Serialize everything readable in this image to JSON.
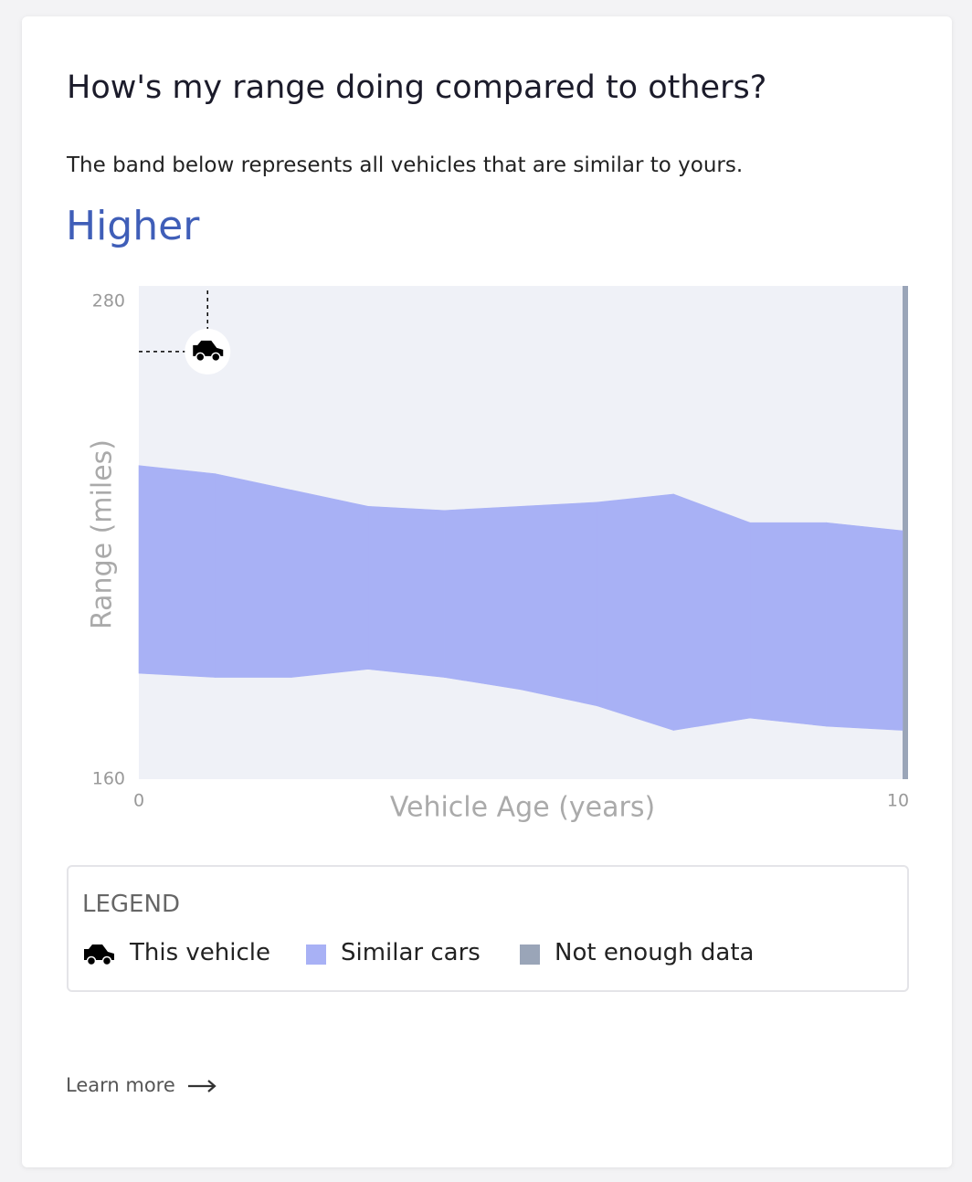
{
  "header": {
    "title": "How's my range doing compared to others?",
    "subtitle": "The band below represents all vehicles that are similar to yours.",
    "status": "Higher"
  },
  "chart_data": {
    "type": "range-area",
    "x_label": "Vehicle Age (years)",
    "y_label": "Range (miles)",
    "xlim": [
      0,
      10
    ],
    "ylim": [
      160,
      280
    ],
    "xticks": [
      0,
      10
    ],
    "yticks": [
      160,
      280
    ],
    "x": [
      0,
      1,
      2,
      3,
      4,
      5,
      6,
      7,
      8,
      9,
      10
    ],
    "series": [
      {
        "name": "Similar cars",
        "color": "#a8b1f5",
        "high": [
          237,
          235,
          231,
          227,
          226,
          227,
          228,
          230,
          223,
          223,
          221
        ],
        "low": [
          186,
          185,
          185,
          187,
          185,
          182,
          178,
          172,
          175,
          173,
          172
        ]
      }
    ],
    "this_vehicle": {
      "name": "This vehicle",
      "x": 0.9,
      "y": 265
    },
    "no_data": {
      "name": "Not enough data",
      "color": "#9aa5b8"
    }
  },
  "legend_title": "LEGEND",
  "link": "Learn more"
}
